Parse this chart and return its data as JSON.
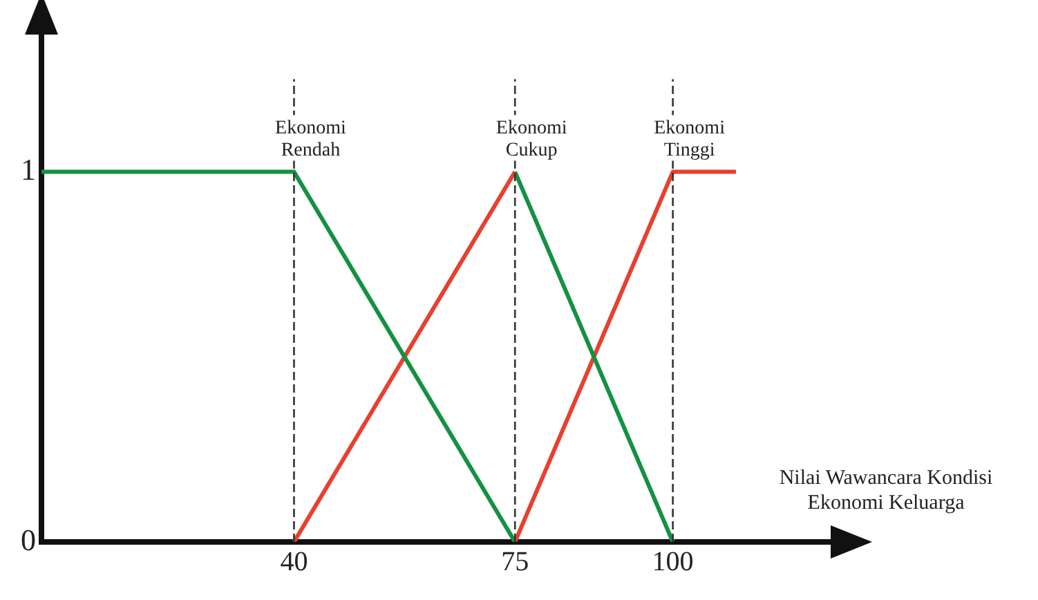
{
  "chart_data": {
    "type": "line",
    "xlabel": "Nilai Wawancara Kondisi\nEkonomi Keluarga",
    "xlim": [
      0,
      125
    ],
    "xticks": [
      40,
      75,
      100
    ],
    "ylim": [
      0,
      1.4
    ],
    "yticks": [
      0,
      1
    ],
    "grid": false,
    "legend": false,
    "marker": "none",
    "series": [
      {
        "color": "#149142",
        "x": [
          0,
          40,
          75
        ],
        "values": [
          1,
          1,
          0
        ]
      },
      {
        "color": "#e8402f",
        "x": [
          40,
          75
        ],
        "values": [
          0,
          1
        ]
      },
      {
        "color": "#149142",
        "x": [
          75,
          100
        ],
        "values": [
          1,
          0
        ]
      },
      {
        "color": "#e8402f",
        "x": [
          75,
          100,
          110
        ],
        "values": [
          0,
          1,
          1
        ]
      }
    ],
    "ref_lines": [
      {
        "axis": "x",
        "value": 40,
        "color": "#333333",
        "line_style": "dashed"
      },
      {
        "axis": "x",
        "value": 75,
        "color": "#333333",
        "line_style": "dashed"
      },
      {
        "axis": "x",
        "value": 100,
        "color": "#333333",
        "line_style": "dashed"
      }
    ],
    "annotations": [
      {
        "text": "Ekonomi\nRendah",
        "x": 40,
        "y": 1
      },
      {
        "text": "Ekonomi\nCukup",
        "x": 75,
        "y": 1
      },
      {
        "text": "Ekonomi\nTinggi",
        "x": 100,
        "y": 1
      }
    ]
  }
}
